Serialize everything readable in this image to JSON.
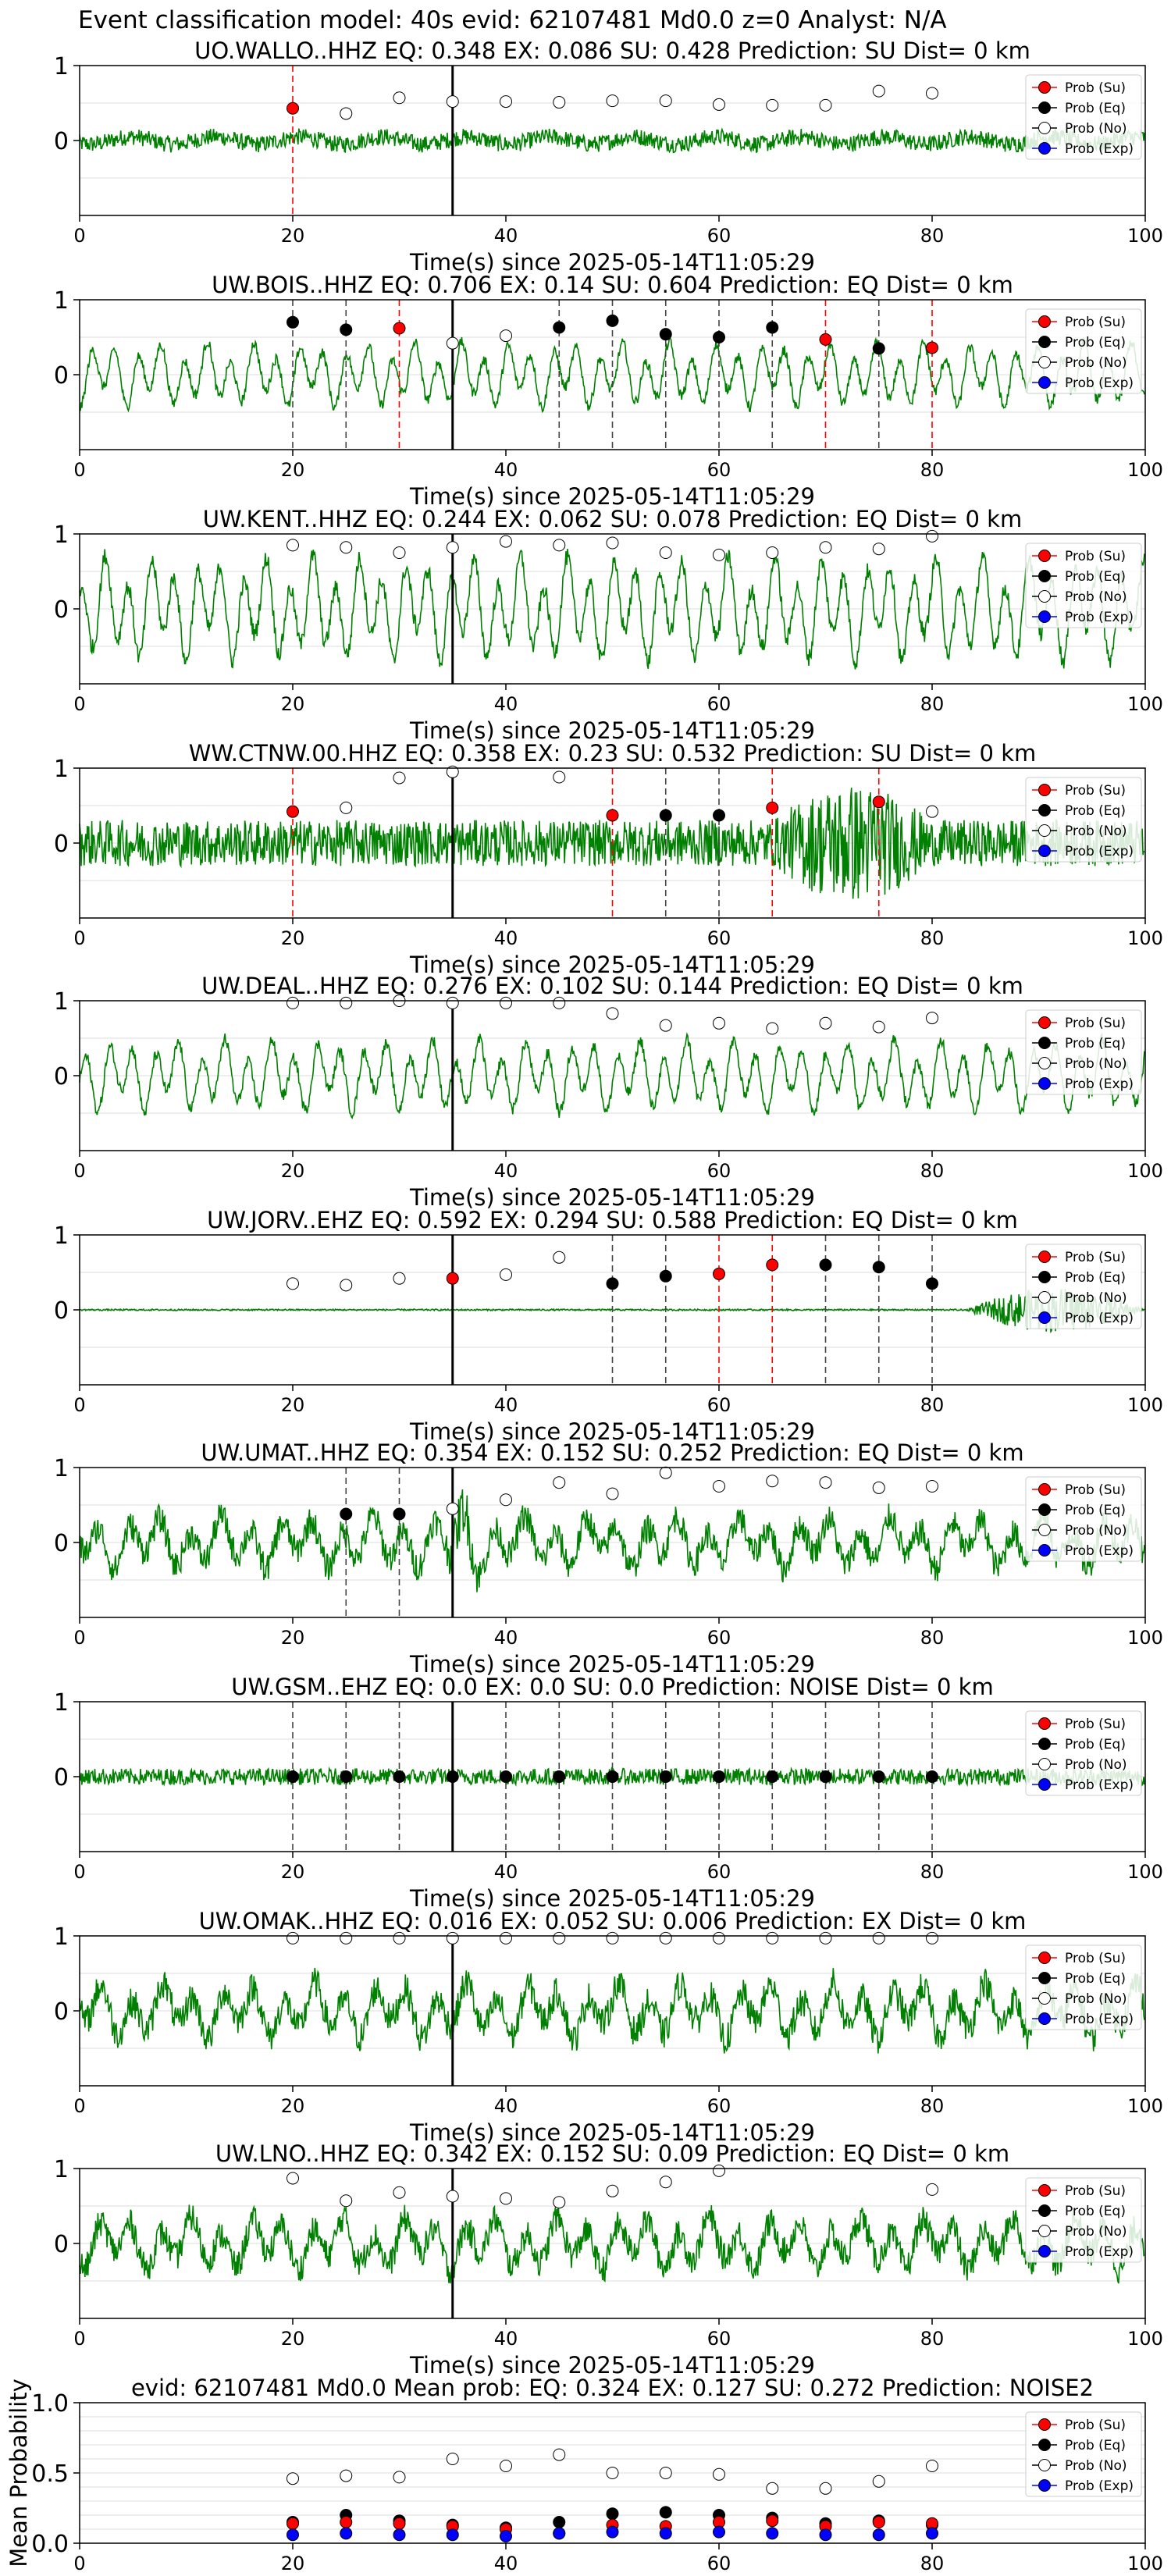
{
  "suptitle": "Event classification model: 40s evid: 62107481 Md0.0 z=0 Analyst: N/A",
  "xlabel": "Time(s) since 2025-05-14T11:05:29",
  "legend": [
    "Prob (Su)",
    "Prob (Eq)",
    "Prob (No)",
    "Prob (Exp)"
  ],
  "colors": {
    "su": "#ff0000",
    "eq": "#000000",
    "no": "#ffffff",
    "exp": "#0000ff",
    "trace": "#008000",
    "grid": "#dddddd"
  },
  "chart_data": [
    {
      "type": "line",
      "station": "UO.WALLO..HHZ",
      "title": "UO.WALLO..HHZ   EQ: 0.348  EX: 0.086  SU: 0.428   Prediction: SU    Dist= 0 km",
      "xlim": [
        0,
        100
      ],
      "ylim": [
        -1,
        1
      ],
      "xticks": [
        0,
        20,
        40,
        60,
        80,
        100
      ],
      "yticks": [
        0,
        1
      ],
      "trace": {
        "style": "narrow",
        "amp": 0.14,
        "vline": 35,
        "burst": []
      },
      "markers": {
        "x": [
          20,
          25,
          30,
          35,
          40,
          45,
          50,
          55,
          60,
          65,
          70,
          75,
          80
        ],
        "type": [
          "su",
          "no",
          "no",
          "no",
          "no",
          "no",
          "no",
          "no",
          "no",
          "no",
          "no",
          "no",
          "no"
        ],
        "y": [
          0.43,
          0.36,
          0.57,
          0.52,
          0.52,
          0.51,
          0.53,
          0.53,
          0.48,
          0.47,
          0.47,
          0.66,
          0.63
        ]
      },
      "dashed": [
        {
          "x": 20,
          "color": "su"
        }
      ]
    },
    {
      "type": "line",
      "station": "UW.BOIS..HHZ",
      "title": "UW.BOIS..HHZ   EQ: 0.706  EX: 0.14  SU: 0.604   Prediction: EQ    Dist= 0 km",
      "xlim": [
        0,
        100
      ],
      "ylim": [
        -1,
        1
      ],
      "xticks": [
        0,
        20,
        40,
        60,
        80,
        100
      ],
      "yticks": [
        0,
        1
      ],
      "trace": {
        "style": "wavy",
        "amp": 0.4,
        "vline": 35,
        "burst": []
      },
      "markers": {
        "x": [
          20,
          25,
          30,
          35,
          40,
          45,
          50,
          55,
          60,
          65,
          70,
          75,
          80
        ],
        "type": [
          "eq",
          "eq",
          "su",
          "no",
          "no",
          "eq",
          "eq",
          "eq",
          "eq",
          "eq",
          "su",
          "eq",
          "su"
        ],
        "y": [
          0.7,
          0.6,
          0.62,
          0.42,
          0.52,
          0.63,
          0.72,
          0.54,
          0.5,
          0.63,
          0.47,
          0.35,
          0.36
        ]
      },
      "dashed": [
        {
          "x": 20,
          "color": "eq"
        },
        {
          "x": 25,
          "color": "eq"
        },
        {
          "x": 30,
          "color": "su"
        },
        {
          "x": 45,
          "color": "eq"
        },
        {
          "x": 50,
          "color": "eq"
        },
        {
          "x": 55,
          "color": "eq"
        },
        {
          "x": 60,
          "color": "eq"
        },
        {
          "x": 65,
          "color": "eq"
        },
        {
          "x": 70,
          "color": "su"
        },
        {
          "x": 75,
          "color": "eq"
        },
        {
          "x": 80,
          "color": "su"
        }
      ]
    },
    {
      "type": "line",
      "station": "UW.KENT..HHZ",
      "title": "UW.KENT..HHZ   EQ: 0.244  EX: 0.062  SU: 0.078   Prediction: EQ    Dist= 0 km",
      "xlim": [
        0,
        100
      ],
      "ylim": [
        -1,
        1
      ],
      "xticks": [
        0,
        20,
        40,
        60,
        80,
        100
      ],
      "yticks": [
        0,
        1
      ],
      "trace": {
        "style": "wavy",
        "amp": 0.65,
        "vline": 35,
        "burst": []
      },
      "markers": {
        "x": [
          20,
          25,
          30,
          35,
          40,
          45,
          50,
          55,
          60,
          65,
          70,
          75,
          80
        ],
        "type": [
          "no",
          "no",
          "no",
          "no",
          "no",
          "no",
          "no",
          "no",
          "no",
          "no",
          "no",
          "no",
          "no"
        ],
        "y": [
          0.85,
          0.82,
          0.75,
          0.82,
          0.9,
          0.85,
          0.88,
          0.75,
          0.72,
          0.75,
          0.82,
          0.8,
          0.97
        ]
      },
      "dashed": []
    },
    {
      "type": "line",
      "station": "WW.CTNW.00.HHZ",
      "title": "WW.CTNW.00.HHZ   EQ: 0.358  EX: 0.23  SU: 0.532   Prediction: SU    Dist= 0 km",
      "xlim": [
        0,
        100
      ],
      "ylim": [
        -1,
        1
      ],
      "xticks": [
        0,
        20,
        40,
        60,
        80,
        100
      ],
      "yticks": [
        0,
        1
      ],
      "trace": {
        "style": "noisy",
        "amp": 0.28,
        "vline": 35,
        "burst": [
          [
            65,
            80,
            2.6
          ]
        ]
      },
      "markers": {
        "x": [
          20,
          25,
          30,
          35,
          45,
          50,
          55,
          60,
          65,
          75,
          80
        ],
        "type": [
          "su",
          "no",
          "no",
          "no",
          "no",
          "su",
          "eq",
          "eq",
          "su",
          "su",
          "no"
        ],
        "y": [
          0.42,
          0.47,
          0.87,
          0.95,
          0.88,
          0.37,
          0.37,
          0.37,
          0.47,
          0.55,
          0.42
        ]
      },
      "dashed": [
        {
          "x": 20,
          "color": "su"
        },
        {
          "x": 50,
          "color": "su"
        },
        {
          "x": 55,
          "color": "eq"
        },
        {
          "x": 60,
          "color": "eq"
        },
        {
          "x": 65,
          "color": "su"
        },
        {
          "x": 75,
          "color": "su"
        }
      ]
    },
    {
      "type": "line",
      "station": "UW.DEAL..HHZ",
      "title": "UW.DEAL..HHZ   EQ: 0.276  EX: 0.102  SU: 0.144   Prediction: EQ    Dist= 0 km",
      "xlim": [
        0,
        100
      ],
      "ylim": [
        -1,
        1
      ],
      "xticks": [
        0,
        20,
        40,
        60,
        80,
        100
      ],
      "yticks": [
        0,
        1
      ],
      "trace": {
        "style": "wavy",
        "amp": 0.45,
        "vline": 35,
        "burst": []
      },
      "markers": {
        "x": [
          20,
          25,
          30,
          35,
          40,
          45,
          50,
          55,
          60,
          65,
          70,
          75,
          80
        ],
        "type": [
          "no",
          "no",
          "no",
          "no",
          "no",
          "no",
          "no",
          "no",
          "no",
          "no",
          "no",
          "no",
          "no"
        ],
        "y": [
          0.97,
          0.97,
          1.0,
          0.97,
          0.97,
          0.97,
          0.83,
          0.67,
          0.7,
          0.63,
          0.7,
          0.65,
          0.77
        ]
      },
      "dashed": []
    },
    {
      "type": "line",
      "station": "UW.JORV..EHZ",
      "title": "UW.JORV..EHZ   EQ: 0.592  EX: 0.294  SU: 0.588   Prediction: EQ    Dist= 0 km",
      "xlim": [
        0,
        100
      ],
      "ylim": [
        -1,
        1
      ],
      "xticks": [
        0,
        20,
        40,
        60,
        80,
        100
      ],
      "yticks": [
        0,
        1
      ],
      "trace": {
        "style": "flat",
        "amp": 0.01,
        "vline": 35,
        "burst": [
          [
            83,
            100,
            30
          ]
        ]
      },
      "markers": {
        "x": [
          20,
          25,
          30,
          35,
          40,
          45,
          50,
          55,
          60,
          65,
          70,
          75,
          80
        ],
        "type": [
          "no",
          "no",
          "no",
          "su",
          "no",
          "no",
          "eq",
          "eq",
          "su",
          "su",
          "eq",
          "eq",
          "eq"
        ],
        "y": [
          0.35,
          0.33,
          0.42,
          0.42,
          0.47,
          0.7,
          0.35,
          0.45,
          0.48,
          0.6,
          0.6,
          0.57,
          0.35
        ]
      },
      "dashed": [
        {
          "x": 50,
          "color": "eq"
        },
        {
          "x": 55,
          "color": "eq"
        },
        {
          "x": 60,
          "color": "su"
        },
        {
          "x": 65,
          "color": "su"
        },
        {
          "x": 70,
          "color": "eq"
        },
        {
          "x": 75,
          "color": "eq"
        },
        {
          "x": 80,
          "color": "eq"
        }
      ]
    },
    {
      "type": "line",
      "station": "UW.UMAT..HHZ",
      "title": "UW.UMAT..HHZ   EQ: 0.354  EX: 0.152  SU: 0.252   Prediction: EQ    Dist= 0 km",
      "xlim": [
        0,
        100
      ],
      "ylim": [
        -1,
        1
      ],
      "xticks": [
        0,
        20,
        40,
        60,
        80,
        100
      ],
      "yticks": [
        0,
        1
      ],
      "trace": {
        "style": "mixed",
        "amp": 0.42,
        "vline": 35,
        "burst": [
          [
            34,
            38,
            1.8
          ]
        ]
      },
      "markers": {
        "x": [
          25,
          30,
          35,
          40,
          45,
          50,
          55,
          60,
          65,
          70,
          75,
          80
        ],
        "type": [
          "eq",
          "eq",
          "no",
          "no",
          "no",
          "no",
          "no",
          "no",
          "no",
          "no",
          "no",
          "no"
        ],
        "y": [
          0.38,
          0.38,
          0.45,
          0.57,
          0.8,
          0.65,
          0.93,
          0.75,
          0.82,
          0.8,
          0.73,
          0.75
        ]
      },
      "dashed": [
        {
          "x": 25,
          "color": "eq"
        },
        {
          "x": 30,
          "color": "eq"
        }
      ]
    },
    {
      "type": "line",
      "station": "UW.GSM..EHZ",
      "title": "UW.GSM..EHZ   EQ: 0.0  EX: 0.0  SU: 0.0   Prediction: NOISE    Dist= 0 km",
      "xlim": [
        0,
        100
      ],
      "ylim": [
        -1,
        1
      ],
      "xticks": [
        0,
        20,
        40,
        60,
        80,
        100
      ],
      "yticks": [
        0,
        1
      ],
      "trace": {
        "style": "noisy",
        "amp": 0.1,
        "vline": 35,
        "burst": []
      },
      "markers": {
        "x": [
          20,
          25,
          30,
          35,
          40,
          45,
          50,
          55,
          60,
          65,
          70,
          75,
          80
        ],
        "type": [
          "eq",
          "eq",
          "eq",
          "eq",
          "eq",
          "eq",
          "eq",
          "eq",
          "eq",
          "eq",
          "eq",
          "eq",
          "eq"
        ],
        "y": [
          0,
          0,
          0,
          0,
          0,
          0,
          0,
          0,
          0,
          0,
          0,
          0,
          0
        ]
      },
      "dashed": [
        {
          "x": 20,
          "color": "eq"
        },
        {
          "x": 25,
          "color": "eq"
        },
        {
          "x": 30,
          "color": "eq"
        },
        {
          "x": 40,
          "color": "eq"
        },
        {
          "x": 45,
          "color": "eq"
        },
        {
          "x": 50,
          "color": "eq"
        },
        {
          "x": 55,
          "color": "eq"
        },
        {
          "x": 60,
          "color": "eq"
        },
        {
          "x": 65,
          "color": "eq"
        },
        {
          "x": 70,
          "color": "eq"
        },
        {
          "x": 75,
          "color": "eq"
        },
        {
          "x": 80,
          "color": "eq"
        }
      ]
    },
    {
      "type": "line",
      "station": "UW.OMAK..HHZ",
      "title": "UW.OMAK..HHZ   EQ: 0.016  EX: 0.052  SU: 0.006   Prediction: EX    Dist= 0 km",
      "xlim": [
        0,
        100
      ],
      "ylim": [
        -1,
        1
      ],
      "xticks": [
        0,
        20,
        40,
        60,
        80,
        100
      ],
      "yticks": [
        0,
        1
      ],
      "trace": {
        "style": "mixed",
        "amp": 0.45,
        "vline": 35,
        "burst": []
      },
      "markers": {
        "x": [
          20,
          25,
          30,
          35,
          40,
          45,
          50,
          55,
          60,
          65,
          70,
          75,
          80
        ],
        "type": [
          "no",
          "no",
          "no",
          "no",
          "no",
          "no",
          "no",
          "no",
          "no",
          "no",
          "no",
          "no",
          "no"
        ],
        "y": [
          0.97,
          0.97,
          0.97,
          0.97,
          0.97,
          0.97,
          0.97,
          0.97,
          0.97,
          0.97,
          0.97,
          0.97,
          0.97
        ]
      },
      "dashed": []
    },
    {
      "type": "line",
      "station": "UW.LNO..HHZ",
      "title": "UW.LNO..HHZ   EQ: 0.342  EX: 0.152  SU: 0.09   Prediction: EQ    Dist= 0 km",
      "xlim": [
        0,
        100
      ],
      "ylim": [
        -1,
        1
      ],
      "xticks": [
        0,
        20,
        40,
        60,
        80,
        100
      ],
      "yticks": [
        0,
        1
      ],
      "trace": {
        "style": "mixed",
        "amp": 0.42,
        "vline": 35,
        "burst": []
      },
      "markers": {
        "x": [
          20,
          25,
          30,
          35,
          40,
          45,
          50,
          55,
          60,
          80
        ],
        "type": [
          "no",
          "no",
          "no",
          "no",
          "no",
          "no",
          "no",
          "no",
          "no",
          "no"
        ],
        "y": [
          0.87,
          0.57,
          0.68,
          0.63,
          0.6,
          0.55,
          0.7,
          0.82,
          0.97,
          0.72
        ]
      },
      "dashed": []
    },
    {
      "type": "scatter",
      "station": "mean",
      "title": "evid: 62107481  Md0.0   Mean prob:   EQ: 0.324  EX: 0.127  SU: 0.272   Prediction: NOISE2",
      "ylabel": "Mean Probability",
      "xlim": [
        0,
        100
      ],
      "ylim": [
        0,
        1
      ],
      "xticks": [
        0,
        20,
        40,
        60,
        80,
        100
      ],
      "yticks": [
        0.0,
        0.5,
        1.0
      ],
      "x": [
        20,
        25,
        30,
        35,
        40,
        45,
        50,
        55,
        60,
        65,
        70,
        75,
        80
      ],
      "series": [
        {
          "name": "Prob (No)",
          "key": "no",
          "values": [
            0.46,
            0.48,
            0.47,
            0.6,
            0.55,
            0.63,
            0.5,
            0.5,
            0.49,
            0.39,
            0.39,
            0.44,
            0.55
          ]
        },
        {
          "name": "Prob (Eq)",
          "key": "eq",
          "values": [
            0.15,
            0.2,
            0.16,
            0.13,
            0.11,
            0.15,
            0.21,
            0.22,
            0.2,
            0.18,
            0.14,
            0.16,
            0.13
          ]
        },
        {
          "name": "Prob (Su)",
          "key": "su",
          "values": [
            0.14,
            0.15,
            0.14,
            0.12,
            0.1,
            0.07,
            0.13,
            0.12,
            0.15,
            0.16,
            0.12,
            0.15,
            0.14
          ]
        },
        {
          "name": "Prob (Exp)",
          "key": "exp",
          "values": [
            0.06,
            0.07,
            0.06,
            0.06,
            0.05,
            0.07,
            0.08,
            0.07,
            0.08,
            0.07,
            0.06,
            0.06,
            0.07
          ]
        }
      ]
    }
  ]
}
